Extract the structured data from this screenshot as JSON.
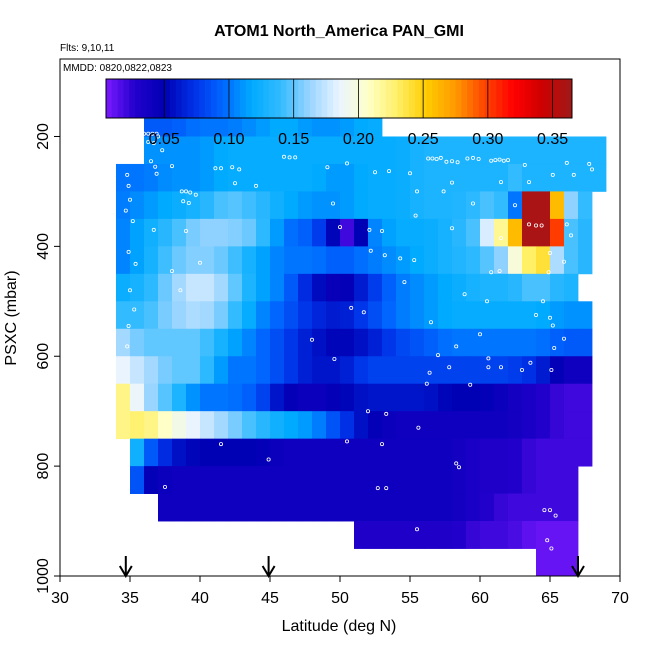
{
  "chart_data": {
    "type": "heatmap",
    "title": "ATOM1 North_America PAN_GMI",
    "subtitle_flights": "Flts: 9,10,11",
    "subtitle_dates": "MMDD: 0820,0822,0823",
    "xlabel": "Latitude (deg N)",
    "ylabel": "PSXC (mbar)",
    "xlim": [
      30,
      70
    ],
    "ylim": [
      1000,
      0
    ],
    "y_reversed": true,
    "xticks": [
      30,
      35,
      40,
      45,
      50,
      55,
      60,
      65,
      70
    ],
    "yticks": [
      200,
      400,
      600,
      800,
      1000
    ],
    "grid": false,
    "colorbar": {
      "placement": "top",
      "range": [
        0.005,
        0.365
      ],
      "ticks": [
        0.05,
        0.1,
        0.15,
        0.2,
        0.25,
        0.3,
        0.35
      ],
      "tick_labels": [
        "0.05",
        "0.10",
        "0.15",
        "0.20",
        "0.25",
        "0.30",
        "0.35"
      ],
      "colors": [
        "#7a1aff",
        "#2200cc",
        "#0000b4",
        "#0030e6",
        "#0066ff",
        "#00aaff",
        "#33bbff",
        "#9ad5ff",
        "#eaf4ff",
        "#ffffc8",
        "#fff066",
        "#ffcc00",
        "#ff9900",
        "#ff4400",
        "#ff0000",
        "#cc0000",
        "#a01a1a"
      ]
    },
    "lat_bin_start": 34,
    "lat_bin_width": 1,
    "lat_bin_count": 34,
    "pressure_levels": [
      175,
      225,
      275,
      325,
      375,
      425,
      475,
      525,
      575,
      625,
      675,
      725,
      775,
      825,
      875,
      925,
      975
    ],
    "row_extents": [
      [
        36,
        52
      ],
      [
        36,
        68
      ],
      [
        34,
        68
      ],
      [
        34,
        67
      ],
      [
        34,
        67
      ],
      [
        34,
        67
      ],
      [
        34,
        66
      ],
      [
        34,
        67
      ],
      [
        34,
        67
      ],
      [
        34,
        67
      ],
      [
        34,
        67
      ],
      [
        34,
        67
      ],
      [
        35,
        67
      ],
      [
        35,
        66
      ],
      [
        37,
        66
      ],
      [
        51,
        66
      ],
      [
        64,
        66
      ]
    ],
    "anchor_columns": [
      34,
      36,
      38,
      40,
      42,
      44,
      46,
      48,
      50,
      52,
      54,
      56,
      58,
      60,
      62,
      64,
      66,
      68
    ],
    "anchor_values": [
      [
        0.09,
        0.09,
        0.09,
        0.1,
        0.1,
        0.11,
        0.12,
        0.11,
        0.11,
        0.12,
        0.12,
        0.12,
        0.12,
        0.12,
        0.12,
        0.12,
        0.12,
        0.12
      ],
      [
        0.11,
        0.11,
        0.11,
        0.11,
        0.12,
        0.12,
        0.12,
        0.12,
        0.12,
        0.12,
        0.12,
        0.13,
        0.13,
        0.13,
        0.13,
        0.13,
        0.13,
        0.13
      ],
      [
        0.1,
        0.1,
        0.11,
        0.11,
        0.12,
        0.12,
        0.12,
        0.12,
        0.11,
        0.12,
        0.12,
        0.13,
        0.13,
        0.13,
        0.13,
        0.13,
        0.13,
        0.13
      ],
      [
        0.1,
        0.11,
        0.12,
        0.13,
        0.15,
        0.14,
        0.12,
        0.11,
        0.11,
        0.12,
        0.12,
        0.13,
        0.13,
        0.14,
        0.16,
        0.33,
        0.17,
        0.13
      ],
      [
        0.1,
        0.12,
        0.14,
        0.16,
        0.16,
        0.15,
        0.1,
        0.09,
        0.04,
        0.1,
        0.12,
        0.12,
        0.13,
        0.15,
        0.23,
        0.31,
        0.15,
        0.13
      ],
      [
        0.1,
        0.12,
        0.15,
        0.16,
        0.15,
        0.12,
        0.1,
        0.1,
        0.09,
        0.1,
        0.11,
        0.12,
        0.13,
        0.14,
        0.17,
        0.22,
        0.15,
        0.13
      ],
      [
        0.12,
        0.13,
        0.16,
        0.18,
        0.16,
        0.12,
        0.1,
        0.06,
        0.04,
        0.07,
        0.1,
        0.11,
        0.12,
        0.13,
        0.13,
        0.15,
        0.13,
        0.13
      ],
      [
        0.14,
        0.14,
        0.16,
        0.17,
        0.15,
        0.11,
        0.09,
        0.07,
        0.06,
        0.08,
        0.1,
        0.11,
        0.12,
        0.12,
        0.12,
        0.12,
        0.11,
        0.11
      ],
      [
        0.17,
        0.15,
        0.15,
        0.15,
        0.12,
        0.1,
        0.08,
        0.06,
        0.05,
        0.06,
        0.08,
        0.09,
        0.1,
        0.1,
        0.1,
        0.1,
        0.09,
        0.09
      ],
      [
        0.19,
        0.17,
        0.15,
        0.15,
        0.1,
        0.1,
        0.08,
        0.06,
        0.06,
        0.08,
        0.08,
        0.08,
        0.08,
        0.08,
        0.08,
        0.07,
        0.04,
        0.04
      ],
      [
        0.24,
        0.17,
        0.14,
        0.1,
        0.1,
        0.09,
        0.05,
        0.04,
        0.05,
        0.06,
        0.06,
        0.06,
        0.05,
        0.05,
        0.04,
        0.03,
        0.02,
        0.02
      ],
      [
        0.22,
        0.23,
        0.2,
        0.18,
        0.16,
        0.14,
        0.12,
        0.11,
        0.08,
        0.05,
        0.04,
        0.04,
        0.04,
        0.04,
        0.04,
        0.03,
        0.02,
        0.02
      ],
      [
        0.2,
        0.1,
        0.06,
        0.05,
        0.05,
        0.05,
        0.04,
        0.04,
        0.04,
        0.04,
        0.04,
        0.04,
        0.04,
        0.03,
        0.03,
        0.02,
        0.02,
        0.02
      ],
      [
        0.2,
        0.05,
        0.04,
        0.04,
        0.04,
        0.04,
        0.04,
        0.04,
        0.04,
        0.04,
        0.04,
        0.04,
        0.04,
        0.03,
        0.03,
        0.02,
        0.02,
        0.02
      ],
      [
        0.04,
        0.04,
        0.04,
        0.04,
        0.04,
        0.04,
        0.04,
        0.04,
        0.04,
        0.04,
        0.04,
        0.04,
        0.04,
        0.03,
        0.02,
        0.02,
        0.02,
        0.02
      ],
      [
        0.03,
        0.03,
        0.03,
        0.03,
        0.03,
        0.03,
        0.03,
        0.03,
        0.03,
        0.03,
        0.03,
        0.03,
        0.03,
        0.02,
        0.02,
        0.01,
        0.01,
        0.01
      ],
      [
        0.01,
        0.01,
        0.01,
        0.01,
        0.01,
        0.01,
        0.01,
        0.01,
        0.01,
        0.01,
        0.01,
        0.01,
        0.01,
        0.01,
        0.01,
        0.01,
        0.01,
        0.01
      ]
    ],
    "overrides": [
      [
        4,
        63,
        0.36
      ],
      [
        4,
        64,
        0.36
      ],
      [
        4,
        65,
        0.3
      ],
      [
        3,
        63,
        0.36
      ],
      [
        3,
        64,
        0.36
      ],
      [
        3,
        65,
        0.26
      ],
      [
        4,
        61,
        0.22
      ],
      [
        4,
        62,
        0.26
      ],
      [
        5,
        62,
        0.2
      ],
      [
        5,
        63,
        0.23
      ],
      [
        5,
        64,
        0.24
      ],
      [
        3,
        62,
        0.1
      ],
      [
        3,
        61,
        0.14
      ],
      [
        4,
        60,
        0.18
      ],
      [
        5,
        61,
        0.16
      ],
      [
        2,
        62,
        0.14
      ],
      [
        4,
        50,
        0.02
      ],
      [
        4,
        51,
        0.05
      ]
    ],
    "flight_arrows_lat": [
      34.7,
      44.9,
      67.0
    ],
    "sample_points": [
      [
        36.0,
        195
      ],
      [
        36.3,
        195
      ],
      [
        36.6,
        195
      ],
      [
        36.9,
        195
      ],
      [
        36.3,
        210
      ],
      [
        36.7,
        212
      ],
      [
        37.0,
        200
      ],
      [
        37.3,
        225
      ],
      [
        36.5,
        245
      ],
      [
        36.8,
        255
      ],
      [
        36.9,
        268
      ],
      [
        38.0,
        254
      ],
      [
        38.7,
        300
      ],
      [
        39.0,
        300
      ],
      [
        39.3,
        302
      ],
      [
        39.7,
        306
      ],
      [
        38.8,
        318
      ],
      [
        39.2,
        321
      ],
      [
        34.8,
        270
      ],
      [
        34.9,
        290
      ],
      [
        35.0,
        315
      ],
      [
        34.7,
        335
      ],
      [
        35.2,
        354
      ],
      [
        34.9,
        410
      ],
      [
        35.4,
        432
      ],
      [
        35.0,
        480
      ],
      [
        35.3,
        515
      ],
      [
        34.9,
        545
      ],
      [
        34.8,
        582
      ],
      [
        36.7,
        370
      ],
      [
        39.0,
        372
      ],
      [
        38.0,
        445
      ],
      [
        38.6,
        480
      ],
      [
        40.0,
        430
      ],
      [
        41.1,
        258
      ],
      [
        41.5,
        258
      ],
      [
        42.3,
        256
      ],
      [
        42.8,
        260
      ],
      [
        42.5,
        285
      ],
      [
        44.0,
        290
      ],
      [
        46.0,
        237
      ],
      [
        46.4,
        238
      ],
      [
        46.8,
        238
      ],
      [
        49.1,
        256
      ],
      [
        50.5,
        249
      ],
      [
        52.5,
        265
      ],
      [
        53.5,
        263
      ],
      [
        49.5,
        322
      ],
      [
        50.0,
        365
      ],
      [
        52.1,
        370
      ],
      [
        53.0,
        372
      ],
      [
        52.2,
        408
      ],
      [
        53.2,
        416
      ],
      [
        55.3,
        425
      ],
      [
        56.3,
        240
      ],
      [
        56.6,
        240
      ],
      [
        56.9,
        241
      ],
      [
        57.2,
        239
      ],
      [
        57.6,
        246
      ],
      [
        59.1,
        240
      ],
      [
        59.5,
        239
      ],
      [
        59.9,
        241
      ],
      [
        60.8,
        244
      ],
      [
        61.1,
        243
      ],
      [
        61.4,
        242
      ],
      [
        61.7,
        244
      ],
      [
        62.0,
        243
      ],
      [
        58.0,
        245
      ],
      [
        58.4,
        247
      ],
      [
        63.2,
        252
      ],
      [
        66.2,
        248
      ],
      [
        67.8,
        250
      ],
      [
        68.0,
        260
      ],
      [
        55.0,
        267
      ],
      [
        58.0,
        284
      ],
      [
        61.5,
        283
      ],
      [
        65.2,
        270
      ],
      [
        66.7,
        270
      ],
      [
        63.5,
        283
      ],
      [
        55.5,
        300
      ],
      [
        57.4,
        300
      ],
      [
        59.5,
        322
      ],
      [
        62.5,
        325
      ],
      [
        55.4,
        344
      ],
      [
        58.0,
        367
      ],
      [
        63.5,
        360
      ],
      [
        64.0,
        362
      ],
      [
        64.4,
        362
      ],
      [
        66.2,
        360
      ],
      [
        66.5,
        380
      ],
      [
        61.5,
        385
      ],
      [
        65.0,
        412
      ],
      [
        66.0,
        428
      ],
      [
        64.9,
        447
      ],
      [
        54.6,
        465
      ],
      [
        58.9,
        487
      ],
      [
        50.8,
        512
      ],
      [
        56.5,
        538
      ],
      [
        60.5,
        500
      ],
      [
        64.5,
        500
      ],
      [
        64.0,
        525
      ],
      [
        65.0,
        530
      ],
      [
        65.2,
        544
      ],
      [
        66.0,
        568
      ],
      [
        65.3,
        585
      ],
      [
        58.3,
        582
      ],
      [
        60.6,
        604
      ],
      [
        65.1,
        625
      ],
      [
        56.2,
        650
      ],
      [
        60.6,
        620
      ],
      [
        59.3,
        652
      ],
      [
        61.5,
        620
      ],
      [
        63.0,
        625
      ],
      [
        52.0,
        700
      ],
      [
        53.3,
        705
      ],
      [
        55.6,
        730
      ],
      [
        53.0,
        760
      ],
      [
        50.5,
        755
      ],
      [
        41.5,
        760
      ],
      [
        44.9,
        788
      ],
      [
        52.7,
        840
      ],
      [
        53.3,
        840
      ],
      [
        58.3,
        795
      ],
      [
        58.5,
        802
      ],
      [
        64.6,
        880
      ],
      [
        65.0,
        880
      ],
      [
        65.4,
        890
      ],
      [
        64.8,
        935
      ],
      [
        65.1,
        950
      ],
      [
        37.5,
        838
      ],
      [
        55.5,
        915
      ],
      [
        48.0,
        570
      ],
      [
        60.0,
        560
      ],
      [
        61.4,
        445
      ],
      [
        54.3,
        422
      ],
      [
        57.0,
        598
      ],
      [
        51.7,
        520
      ],
      [
        60.8,
        447
      ],
      [
        63.6,
        612
      ],
      [
        49.6,
        605
      ],
      [
        56.4,
        630
      ],
      [
        57.8,
        620
      ]
    ]
  }
}
